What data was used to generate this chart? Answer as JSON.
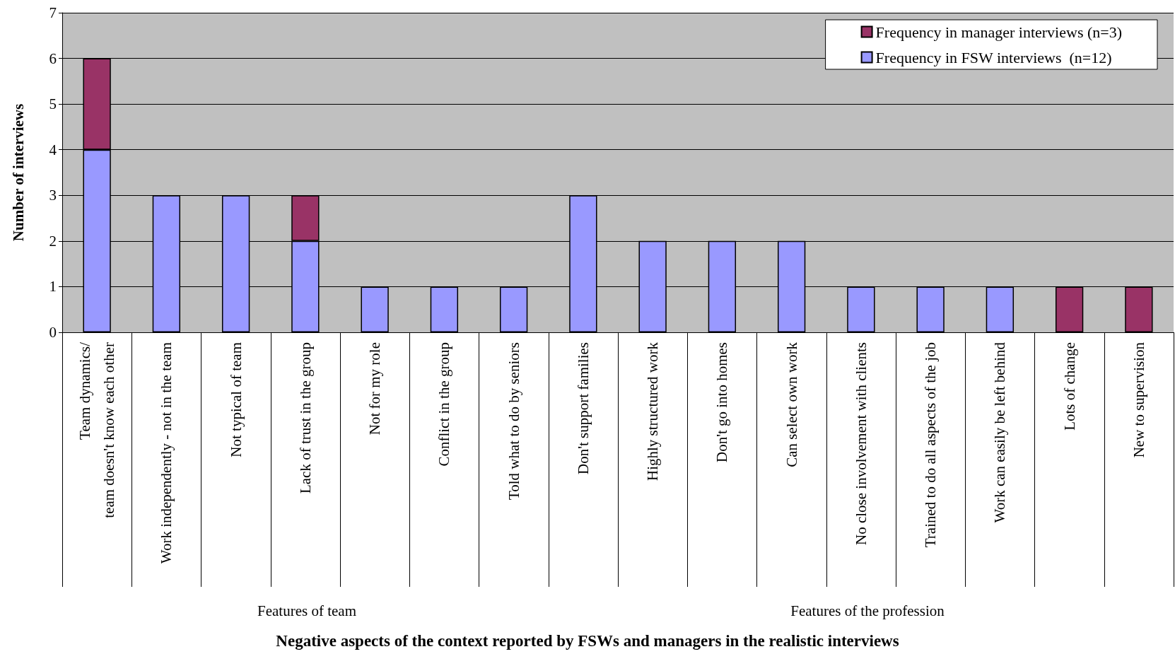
{
  "chart_data": {
    "type": "bar",
    "title": "Negative aspects of the context reported by FSWs and managers in the realistic interviews",
    "ylabel": "Number of interviews",
    "categories": [
      "Team dynamics/\nteam doesn't know each other",
      "Work independently - not in the team",
      "Not typical of team",
      "Lack of trust in the group",
      "Not for my role",
      "Conflict in the group",
      "Told what to do by seniors",
      "Don't support families",
      "Highly structured work",
      "Don't go into homes",
      "Can select own work",
      "No close involvement with clients",
      "Trained to do all aspects of the job",
      "Work can easily be left behind",
      "Lots of change",
      "New to supervision"
    ],
    "series": [
      {
        "name": "Frequency in FSW interviews  (n=12)",
        "color": "#9999ff",
        "values": [
          4,
          3,
          3,
          2,
          1,
          1,
          1,
          3,
          2,
          2,
          2,
          1,
          1,
          1,
          0,
          0
        ]
      },
      {
        "name": "Frequency in manager interviews (n=3)",
        "color": "#993366",
        "values": [
          2,
          0,
          0,
          1,
          0,
          0,
          0,
          0,
          0,
          0,
          0,
          0,
          0,
          0,
          1,
          1
        ]
      }
    ],
    "stacked": true,
    "ylim": [
      0,
      7
    ],
    "yticks": [
      0,
      1,
      2,
      3,
      4,
      5,
      6,
      7
    ],
    "grid": "y",
    "legend": "top right",
    "annotations": [
      "Features of team",
      "Features of the profession"
    ]
  }
}
